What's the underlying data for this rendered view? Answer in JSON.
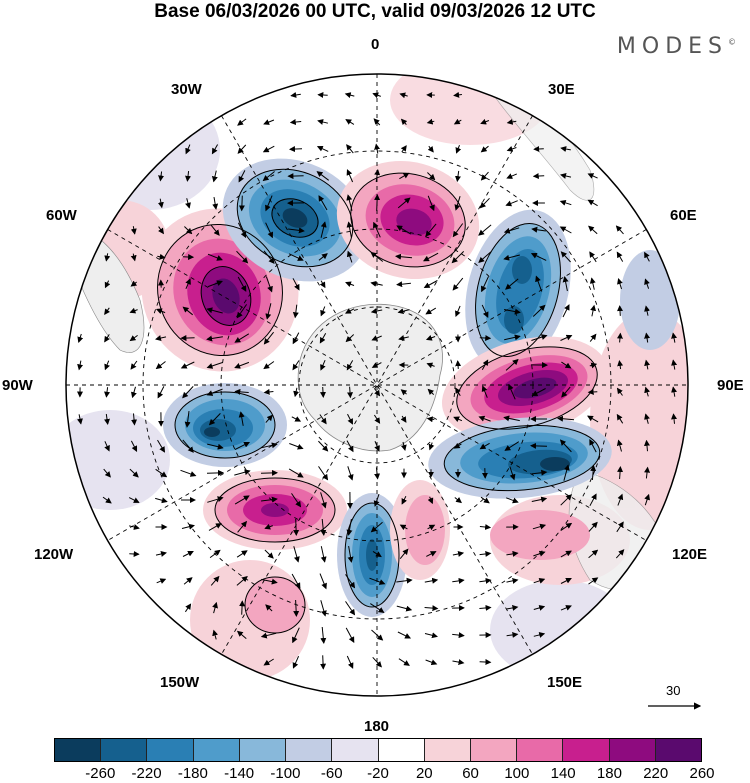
{
  "title": "Base 06/03/2026 00 UTC, valid 09/03/2026 12 UTC",
  "brand": "MODES",
  "brand_mark": "©",
  "longitude_labels": {
    "n0": "0",
    "n30e": "30E",
    "n60e": "60E",
    "n90e": "90E",
    "n120e": "120E",
    "n150e": "150E",
    "n180": "180",
    "n150w": "150W",
    "n120w": "120W",
    "n90w": "90W",
    "n60w": "60W",
    "n30w": "30W"
  },
  "wind_scale_label": "30",
  "colorbar": {
    "ticks": [
      "-260",
      "-220",
      "-180",
      "-140",
      "-100",
      "-60",
      "-20",
      "20",
      "60",
      "100",
      "140",
      "180",
      "220",
      "260"
    ],
    "colors": [
      "#0b3c5d",
      "#15608e",
      "#2a7fb4",
      "#4f9ccb",
      "#88b8da",
      "#c2cde4",
      "#e6e3f0",
      "#ffffff",
      "#f7d3d9",
      "#f3a6c0",
      "#e86aa8",
      "#c81f8e",
      "#8e0b7f",
      "#5a0a6e"
    ]
  },
  "anomalies": [
    {
      "kind": "positive",
      "level": 260,
      "label": "pole-adjacent high near 60W"
    },
    {
      "kind": "negative",
      "level": -260,
      "label": "low near 20W"
    },
    {
      "kind": "positive",
      "level": 220,
      "label": "high near 20E"
    },
    {
      "kind": "negative",
      "level": -180,
      "label": "low near 50E"
    },
    {
      "kind": "positive",
      "level": 260,
      "label": "high near 90E"
    },
    {
      "kind": "negative",
      "level": -220,
      "label": "low near 110E"
    },
    {
      "kind": "negative",
      "level": -220,
      "label": "low near 95W"
    },
    {
      "kind": "positive",
      "level": 220,
      "label": "high near 130W"
    },
    {
      "kind": "negative",
      "level": -180,
      "label": "low near 180"
    }
  ]
}
